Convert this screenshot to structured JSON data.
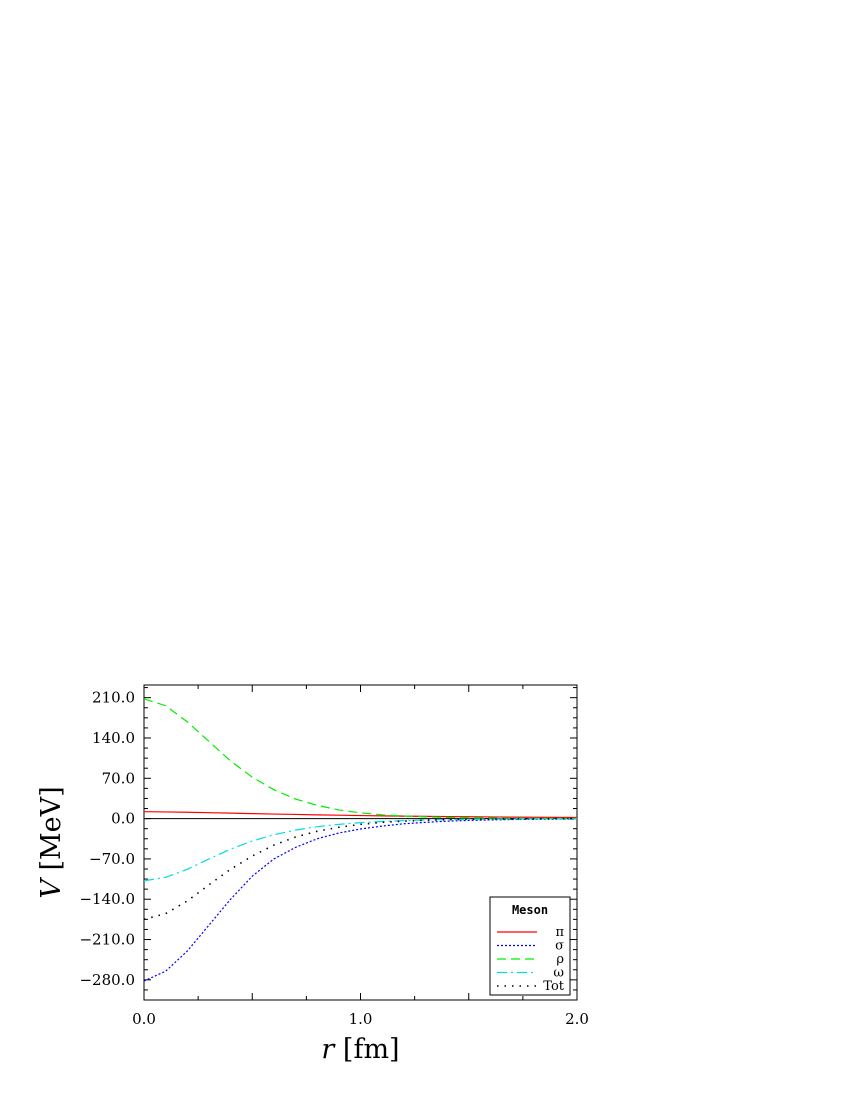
{
  "chart_data": {
    "type": "line",
    "xlabel_var": "r",
    "xlabel_unit": "[fm]",
    "ylabel_var": "V",
    "ylabel_unit": "[MeV]",
    "xlim": [
      0.0,
      2.0
    ],
    "ylim": [
      -315,
      232
    ],
    "x_ticks": [
      {
        "value": 0.0,
        "label": "0.0"
      },
      {
        "value": 1.0,
        "label": "1.0"
      },
      {
        "value": 2.0,
        "label": "2.0"
      }
    ],
    "y_ticks": [
      {
        "value": 210,
        "label": "210.0"
      },
      {
        "value": 140,
        "label": "140.0"
      },
      {
        "value": 70,
        "label": "70.0"
      },
      {
        "value": 0,
        "label": "0.0"
      },
      {
        "value": -70,
        "label": "−70.0"
      },
      {
        "value": -140,
        "label": "−140.0"
      },
      {
        "value": -210,
        "label": "−210.0"
      },
      {
        "value": -280,
        "label": "−280.0"
      }
    ],
    "zero_line": true,
    "legend": {
      "title": "Meson",
      "position": "bottom-right"
    },
    "x": [
      0.0,
      0.1,
      0.2,
      0.3,
      0.4,
      0.5,
      0.6,
      0.7,
      0.8,
      0.9,
      1.0,
      1.1,
      1.2,
      1.3,
      1.4,
      1.5,
      1.6,
      1.7,
      1.8,
      1.9,
      2.0
    ],
    "series": [
      {
        "name": "π",
        "color": "#ff0000",
        "dash": "none",
        "values": [
          12,
          11.6,
          11,
          10.3,
          9.5,
          8.7,
          7.9,
          7.2,
          6.5,
          5.9,
          5.3,
          4.8,
          4.3,
          3.9,
          3.5,
          3.2,
          2.9,
          2.6,
          2.3,
          2.1,
          1.9
        ]
      },
      {
        "name": "σ",
        "color": "#0000ff",
        "dash": "2,2",
        "values": [
          -282,
          -265,
          -230,
          -185,
          -140,
          -100,
          -70,
          -50,
          -35,
          -25,
          -18,
          -13,
          -9,
          -6.5,
          -4.5,
          -3.2,
          -2.3,
          -1.6,
          -1.1,
          -0.8,
          -0.6
        ]
      },
      {
        "name": "ρ",
        "color": "#00ee00",
        "dash": "9,5",
        "values": [
          208,
          196,
          168,
          134,
          100,
          72,
          50,
          34,
          23,
          15,
          10,
          6.5,
          4.5,
          3.0,
          2.0,
          1.4,
          1.0,
          0.7,
          0.5,
          0.3,
          0.2
        ]
      },
      {
        "name": "ω",
        "color": "#00dddd",
        "dash": "10,4,2,4",
        "values": [
          -108,
          -102,
          -88,
          -70,
          -53,
          -39,
          -28,
          -20,
          -14,
          -10,
          -7,
          -5,
          -3.5,
          -2.5,
          -1.8,
          -1.3,
          -0.9,
          -0.6,
          -0.4,
          -0.3,
          -0.2
        ]
      },
      {
        "name": "Tot",
        "color": "#000000",
        "dash": "1.5,6",
        "values": [
          -175,
          -165,
          -143,
          -115,
          -88,
          -65,
          -46,
          -32,
          -22,
          -15,
          -10,
          -6.5,
          -4.3,
          -2.8,
          -1.8,
          -1.2,
          -0.8,
          -0.5,
          -0.3,
          -0.2,
          -0.1
        ]
      }
    ]
  }
}
